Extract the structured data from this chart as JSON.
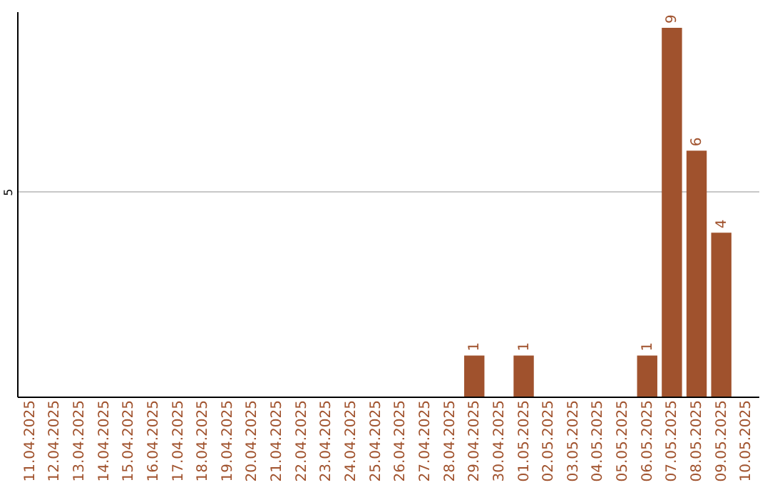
{
  "chart_data": {
    "type": "bar",
    "categories": [
      "11.04.2025",
      "12.04.2025",
      "13.04.2025",
      "14.04.2025",
      "15.04.2025",
      "16.04.2025",
      "17.04.2025",
      "18.04.2025",
      "19.04.2025",
      "20.04.2025",
      "21.04.2025",
      "22.04.2025",
      "23.04.2025",
      "24.04.2025",
      "25.04.2025",
      "26.04.2025",
      "27.04.2025",
      "28.04.2025",
      "29.04.2025",
      "30.04.2025",
      "01.05.2025",
      "02.05.2025",
      "03.05.2025",
      "04.05.2025",
      "05.05.2025",
      "06.05.2025",
      "07.05.2025",
      "08.05.2025",
      "09.05.2025",
      "10.05.2025"
    ],
    "values": [
      null,
      null,
      null,
      null,
      null,
      null,
      null,
      null,
      null,
      null,
      null,
      null,
      null,
      null,
      null,
      null,
      null,
      null,
      1,
      null,
      1,
      null,
      null,
      null,
      null,
      1,
      9,
      6,
      4,
      null
    ],
    "color": "#a0522d",
    "ylim": [
      0,
      9.4
    ],
    "yticks": [
      5
    ],
    "grid": "y",
    "data_labels": true
  }
}
